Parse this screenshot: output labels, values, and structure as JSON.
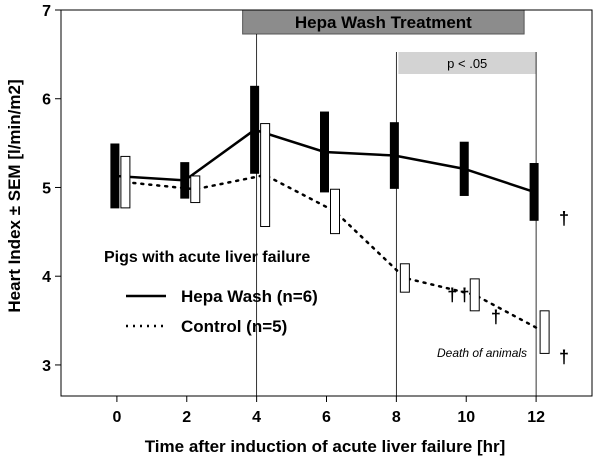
{
  "chart_data": {
    "type": "line",
    "title": "",
    "xlabel": "Time after induction of acute liver failure [hr]",
    "ylabel": "Heart Index ± SEM [l/min/m2]",
    "xlim": [
      -1.6,
      13.6
    ],
    "ylim": [
      2.65,
      7.0
    ],
    "x_ticks": [
      0,
      2,
      4,
      6,
      8,
      10,
      12
    ],
    "y_ticks": [
      3,
      4,
      5,
      6,
      7
    ],
    "grid": false,
    "reference_lines_x": [
      4,
      8,
      12
    ],
    "series": [
      {
        "name": "Hepa Wash (n=6)",
        "line_style": "solid",
        "x": [
          0,
          2,
          4,
          6,
          8,
          10,
          12
        ],
        "y": [
          5.13,
          5.08,
          5.65,
          5.4,
          5.36,
          5.21,
          4.95
        ],
        "sem": [
          0.36,
          0.2,
          0.49,
          0.45,
          0.37,
          0.3,
          0.32
        ]
      },
      {
        "name": "Control (n=5)",
        "line_style": "dotted",
        "x": [
          0,
          2,
          4,
          6,
          8,
          10,
          12
        ],
        "y": [
          5.06,
          4.98,
          5.14,
          4.73,
          3.98,
          3.79,
          3.37
        ],
        "sem": [
          0.29,
          0.15,
          0.58,
          0.25,
          0.16,
          0.18,
          0.24
        ]
      }
    ],
    "legend": {
      "title": "Pigs with acute liver failure",
      "placement": "lower-left"
    },
    "annotations": {
      "treatment_banner": {
        "text": "Hepa Wash Treatment",
        "x_start": 4,
        "x_end": 12
      },
      "significance_banner": {
        "text": "p < .05",
        "x_start": 8,
        "x_end": 12
      },
      "death_note": "Death of animals",
      "deaths": [
        {
          "symbol": "†",
          "x": 9.6,
          "y": 3.72
        },
        {
          "symbol": "†",
          "x": 9.95,
          "y": 3.72
        },
        {
          "symbol": "†",
          "x": 10.85,
          "y": 3.47
        },
        {
          "symbol": "†",
          "x": 12.8,
          "y": 4.58
        },
        {
          "symbol": "†",
          "x": 12.8,
          "y": 3.02
        }
      ]
    }
  }
}
